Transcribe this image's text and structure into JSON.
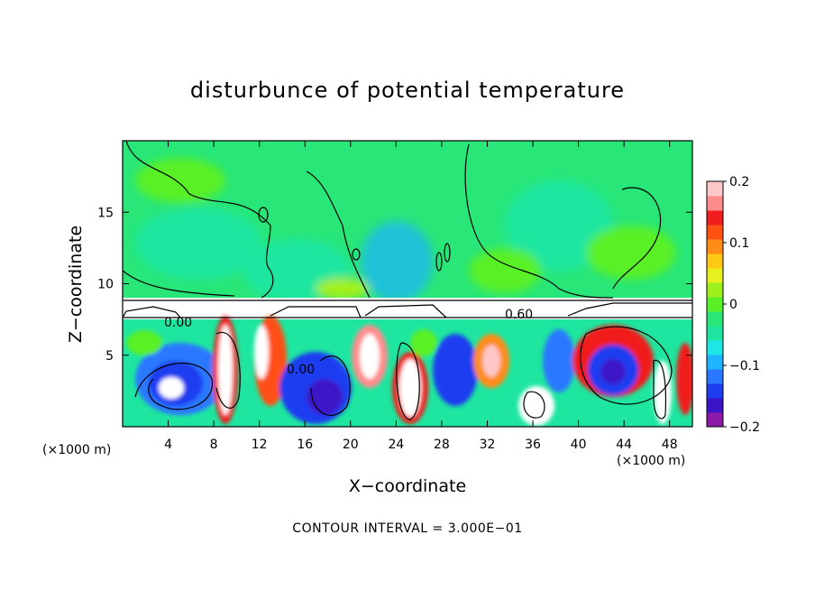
{
  "chart_data": {
    "type": "heatmap",
    "title": "disturbunce of potential temperature",
    "xlabel": "X−coordinate",
    "ylabel": "Z−coordinate",
    "x_unit_left": "(×1000 m)",
    "x_unit_right": "(×1000 m)",
    "x_range": [
      0,
      50
    ],
    "y_range": [
      0,
      20
    ],
    "x_ticks": [
      4,
      8,
      12,
      16,
      20,
      24,
      28,
      32,
      36,
      40,
      44,
      48
    ],
    "x_tick_labels": [
      "4",
      "8",
      "12",
      "16",
      "20",
      "24",
      "28",
      "32",
      "36",
      "40",
      "44",
      "48"
    ],
    "y_ticks": [
      5,
      10,
      15
    ],
    "y_tick_labels": [
      "5",
      "10",
      "15"
    ],
    "colorbar": {
      "min": -0.2,
      "max": 0.2,
      "tick_values": [
        0.2,
        0.1,
        0,
        -0.1,
        -0.2
      ],
      "tick_labels": [
        "0.2",
        "0.1",
        "0",
        "−0.1",
        "−0.2"
      ],
      "colors": [
        "#8c1aa6",
        "#3c14c8",
        "#1e3cf0",
        "#2a78ff",
        "#1eb4ff",
        "#1ee6e6",
        "#1ee6a0",
        "#28e678",
        "#5af028",
        "#a0f01e",
        "#e6f01e",
        "#ffc814",
        "#ff8c14",
        "#ff5014",
        "#f01e1e",
        "#ff8c8c",
        "#ffc8c8"
      ]
    },
    "contour_labels": [
      "0.00",
      "0.00",
      "0.60"
    ],
    "footer": "CONTOUR INTERVAL = 3.000E−01"
  }
}
